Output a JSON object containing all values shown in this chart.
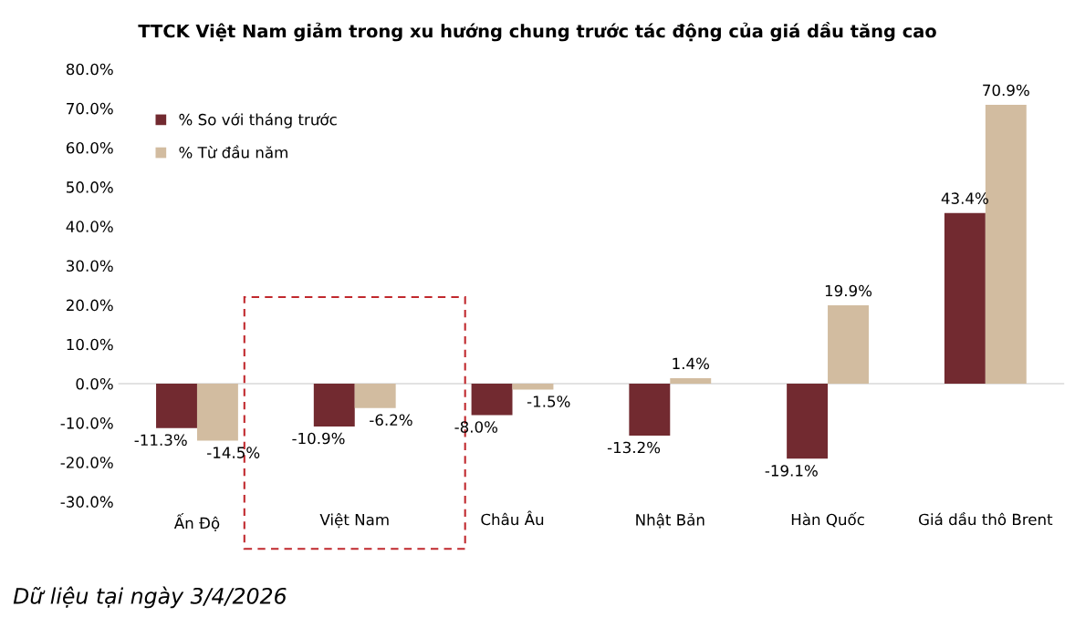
{
  "chart_data": {
    "type": "bar",
    "title": "TTCK Việt Nam giảm trong xu hướng chung trước tác động của giá dầu tăng cao",
    "categories": [
      "Ấn Độ",
      "Việt Nam",
      "Châu Âu",
      "Nhật Bản",
      "Hàn Quốc",
      "Giá dầu thô Brent"
    ],
    "series": [
      {
        "name": "% So với tháng trước",
        "color": "#722a30",
        "values": [
          -11.3,
          -10.9,
          -8.0,
          -13.2,
          -19.1,
          43.4
        ],
        "value_labels": [
          "-11.3%",
          "-10.9%",
          "-8.0%",
          "-13.2%",
          "-19.1%",
          "43.4%"
        ]
      },
      {
        "name": "% Từ đầu năm",
        "color": "#d2bca0",
        "values": [
          -14.5,
          -6.2,
          -1.5,
          1.4,
          19.9,
          70.9
        ],
        "value_labels": [
          "-14.5%",
          "-6.2%",
          "-1.5%",
          "1.4%",
          "19.9%",
          "70.9%"
        ]
      }
    ],
    "ylim": [
      -30,
      80
    ],
    "yticks": [
      {
        "value": -30,
        "label": "-30.0%"
      },
      {
        "value": -20,
        "label": "-20.0%"
      },
      {
        "value": -10,
        "label": "-10.0%"
      },
      {
        "value": 0,
        "label": "0.0%"
      },
      {
        "value": 10,
        "label": "10.0%"
      },
      {
        "value": 20,
        "label": "20.0%"
      },
      {
        "value": 30,
        "label": "30.0%"
      },
      {
        "value": 40,
        "label": "40.0%"
      },
      {
        "value": 50,
        "label": "50.0%"
      },
      {
        "value": 60,
        "label": "60.0%"
      },
      {
        "value": 70,
        "label": "70.0%"
      },
      {
        "value": 80,
        "label": "80.0%"
      }
    ],
    "ref_lines": [
      {
        "axis": "y",
        "value": 0,
        "color": "#d9d9d9"
      }
    ],
    "grid": false,
    "legend": "top left",
    "annotations": [
      "Dữ liệu tại ngày 3/4/2026"
    ]
  }
}
